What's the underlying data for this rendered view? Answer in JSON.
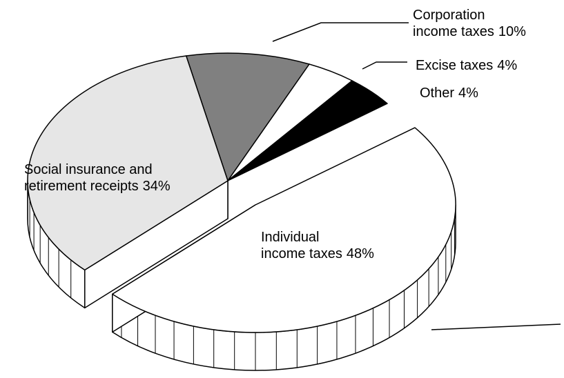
{
  "chart_data": {
    "type": "pie",
    "categories": [
      "Corporation income taxes",
      "Excise taxes",
      "Other",
      "Individual income taxes",
      "Social insurance and retirement receipts"
    ],
    "values": [
      10,
      4,
      4,
      48,
      34
    ],
    "value_labels": [
      "10%",
      "4%",
      "4%",
      "48%",
      "34%"
    ],
    "colors": [
      "#808080",
      "#ffffff",
      "#000000",
      "#ffffff",
      "#e6e6e6"
    ],
    "exploded": [
      "Individual income taxes"
    ]
  }
}
